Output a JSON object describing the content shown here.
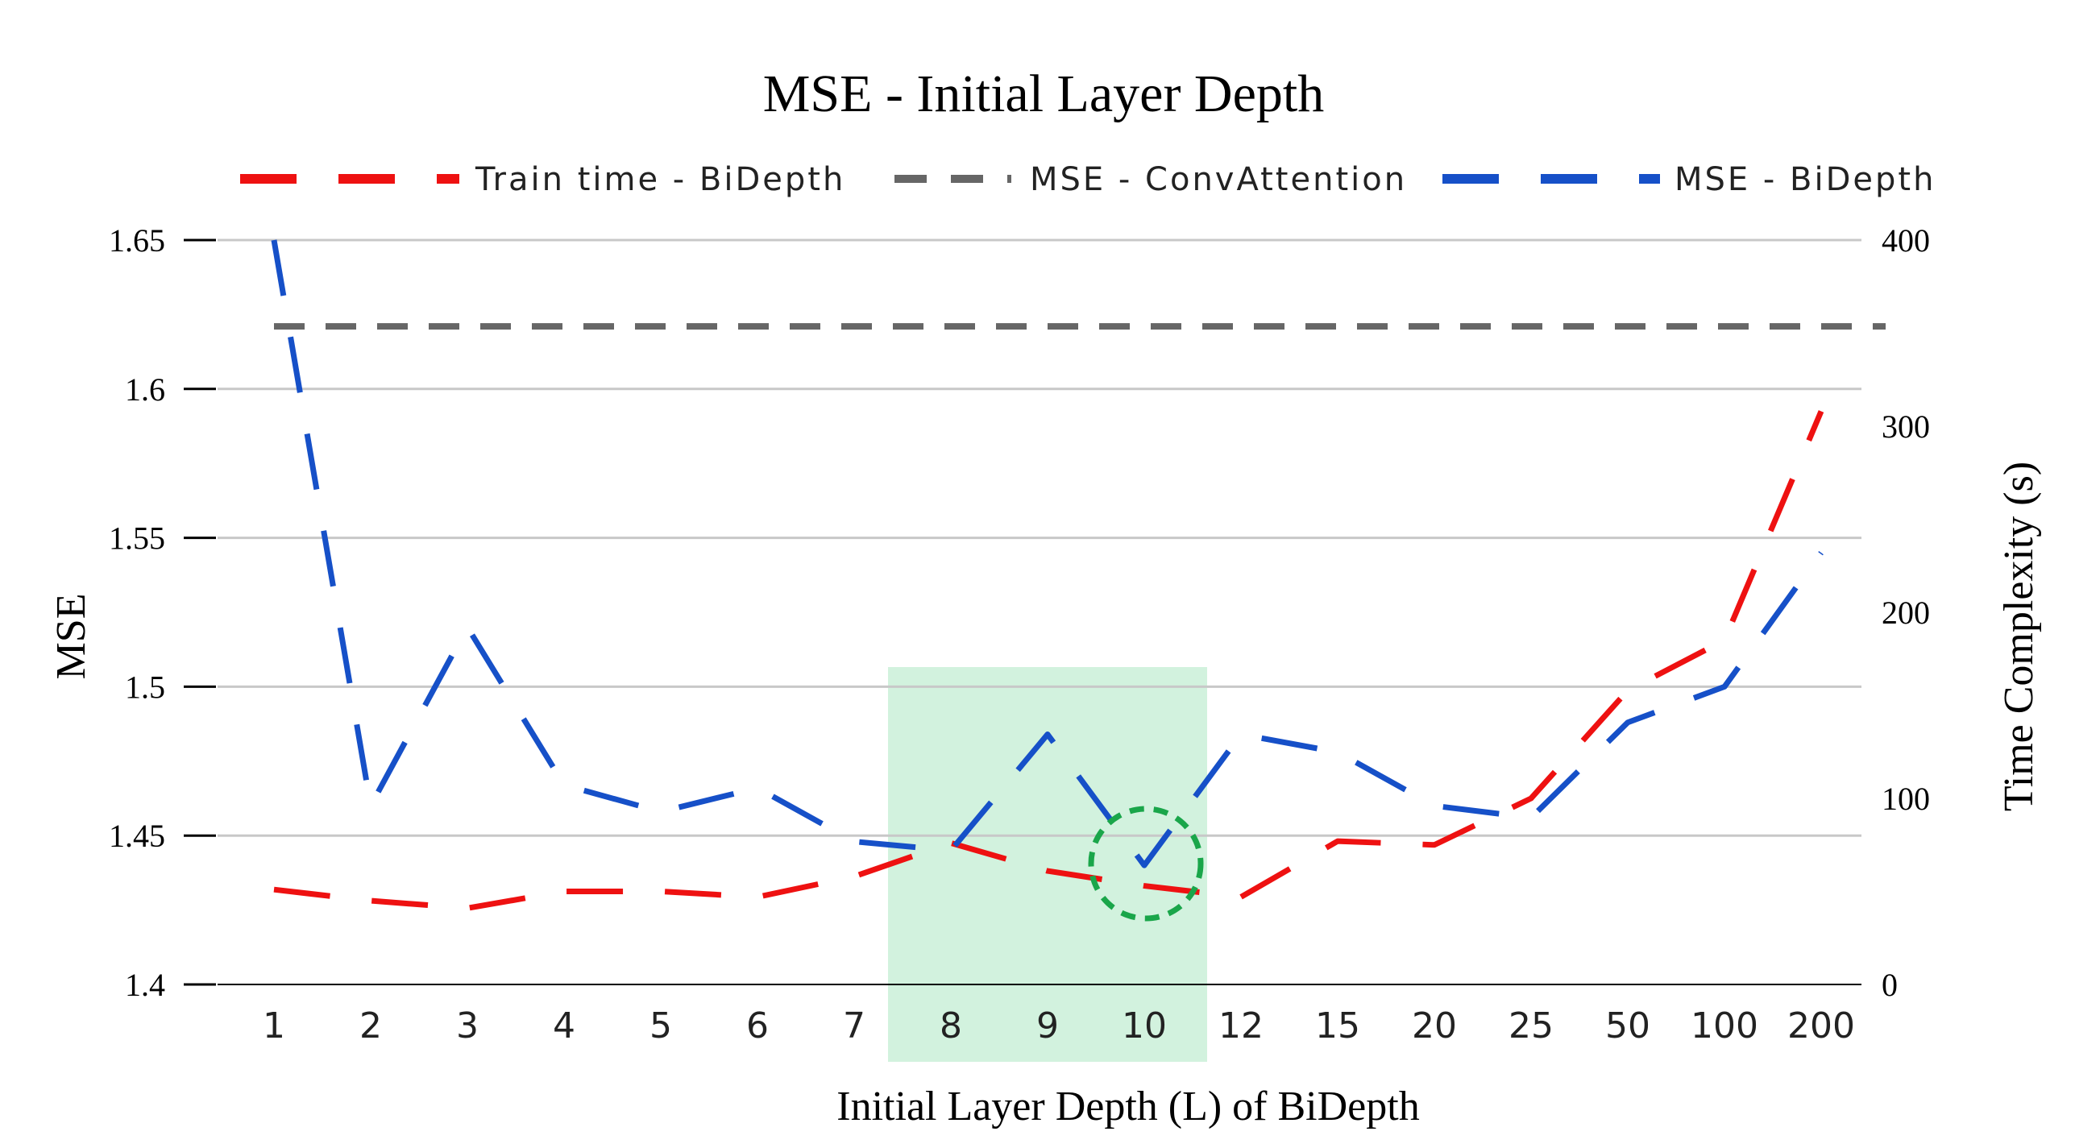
{
  "colors": {
    "train": "#ee1111",
    "conv": "#666666",
    "bidepth": "#1650c8",
    "highlight": "#d2f2de",
    "circle": "#1aa64a",
    "grid": "#c8c8c8"
  },
  "chart_data": {
    "type": "line",
    "title": "MSE - Initial Layer Depth",
    "xlabel": "Initial Layer Depth (L) of BiDepth",
    "ylabel": "MSE",
    "y2label": "Time Complexity (s)",
    "categories": [
      "1",
      "2",
      "3",
      "4",
      "5",
      "6",
      "7",
      "8",
      "9",
      "10",
      "12",
      "15",
      "20",
      "25",
      "50",
      "100",
      "200"
    ],
    "ylim": [
      1.4,
      1.65
    ],
    "yticks": [
      1.4,
      1.45,
      1.5,
      1.55,
      1.6,
      1.65
    ],
    "ytick_labels": [
      "1.4",
      "1.45",
      "1.5",
      "1.55",
      "1.6",
      "1.65"
    ],
    "y2lim": [
      0,
      400
    ],
    "y2ticks": [
      0,
      100,
      200,
      300,
      400
    ],
    "y2tick_labels": [
      "0",
      "100",
      "200",
      "300",
      "400"
    ],
    "grid": true,
    "legend_position": "top",
    "series": [
      {
        "name": "Train time - BiDepth",
        "axis": "right",
        "style": "dashed",
        "values": [
          51,
          45,
          41,
          50,
          50,
          47,
          58,
          76,
          61,
          53,
          47,
          77,
          75,
          100,
          158,
          185,
          308
        ]
      },
      {
        "name": "MSE - ConvAttention",
        "axis": "left",
        "style": "dashed",
        "values": [
          1.621,
          1.621,
          1.621,
          1.621,
          1.621,
          1.621,
          1.621,
          1.621,
          1.621,
          1.621,
          1.621,
          1.621,
          1.621,
          1.621,
          1.621,
          1.621,
          1.621
        ]
      },
      {
        "name": "MSE - BiDepth",
        "axis": "left",
        "style": "dashed",
        "values": [
          1.65,
          1.46,
          1.52,
          1.467,
          1.458,
          1.466,
          1.448,
          1.445,
          1.484,
          1.44,
          1.484,
          1.478,
          1.46,
          1.456,
          1.488,
          1.5,
          1.545
        ]
      }
    ],
    "highlight_categories": [
      "8",
      "9",
      "10"
    ],
    "marked_point": {
      "series": "MSE - BiDepth",
      "category": "10"
    }
  }
}
